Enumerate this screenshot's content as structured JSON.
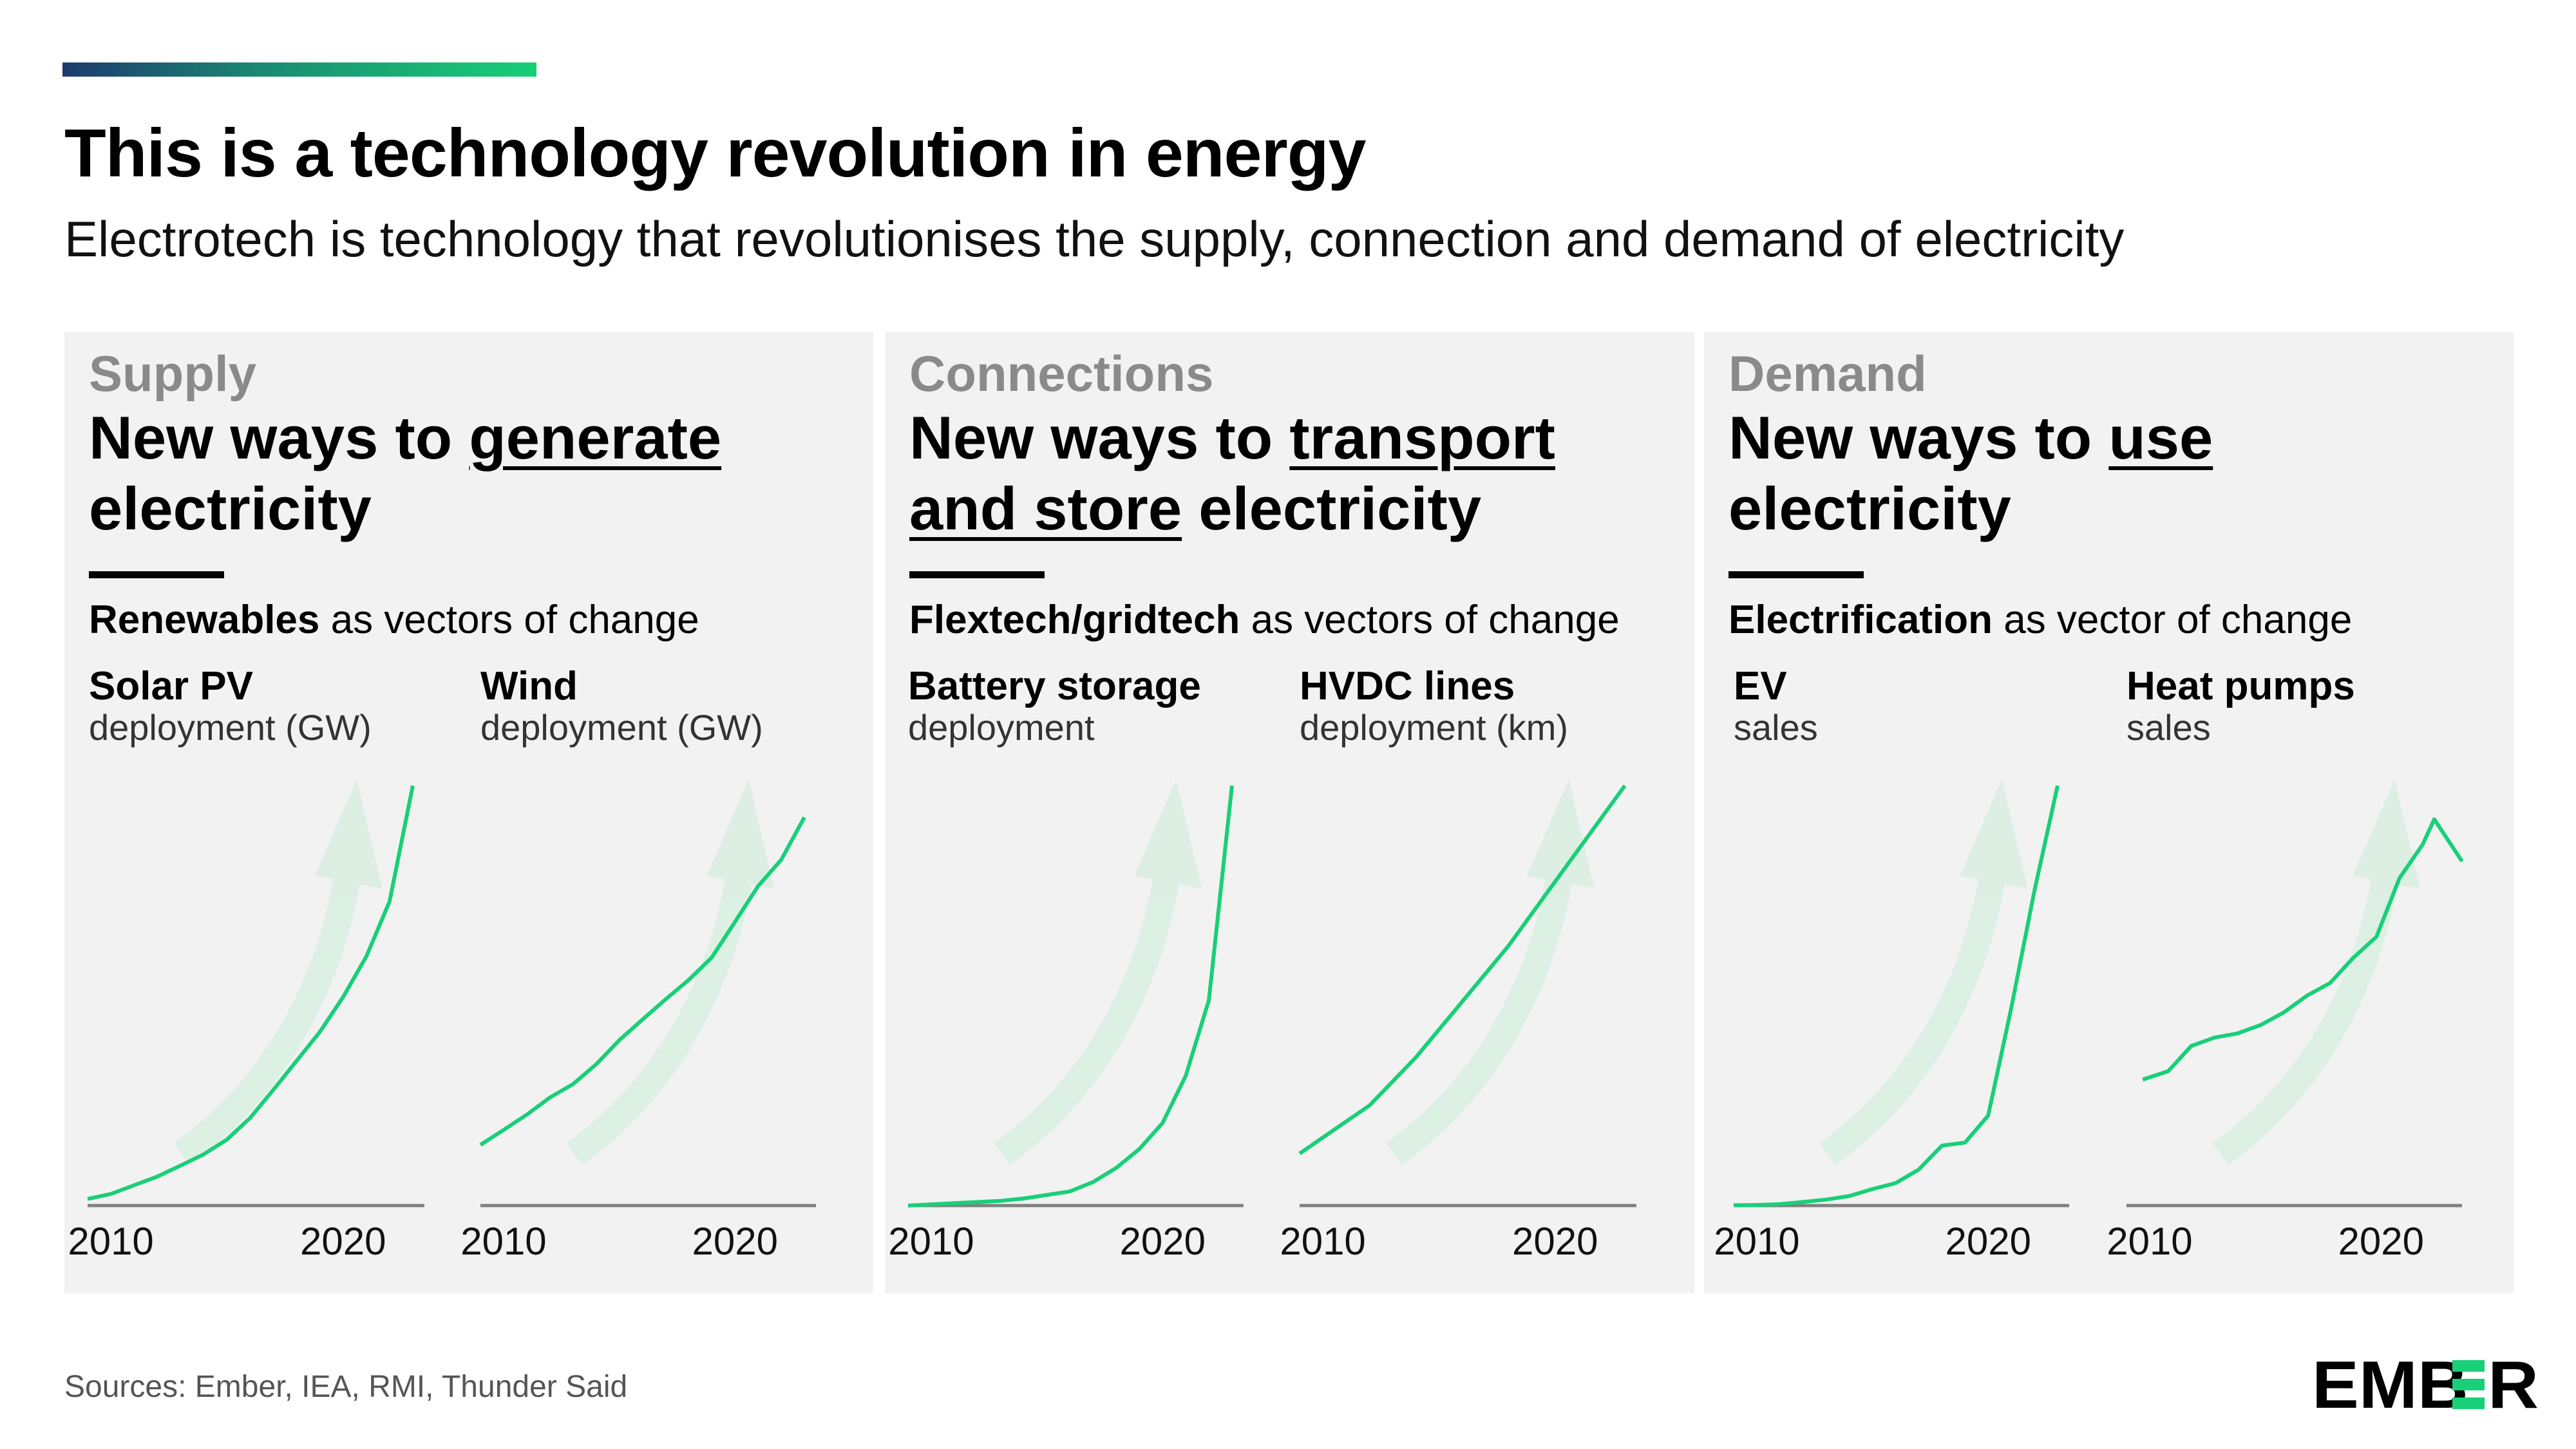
{
  "header": {
    "title": "This is a technology revolution in energy",
    "subtitle": "Electrotech is technology that revolutionises the supply, connection and demand of electricity"
  },
  "panels": [
    {
      "category": "Supply",
      "head_pre": "New ways to ",
      "head_underlined": "generate",
      "head_line2_underlined": "",
      "head_post": "electricity",
      "vector_bold": "Renewables",
      "vector_rest": " as vectors of change"
    },
    {
      "category": "Connections",
      "head_pre": "New ways to ",
      "head_underlined": "transport",
      "head_line2_underlined": "and store",
      "head_post": " electricity",
      "vector_bold": "Flextech/gridtech",
      "vector_rest": " as vectors of change"
    },
    {
      "category": "Demand",
      "head_pre": "New ways to ",
      "head_underlined": "use",
      "head_line2_underlined": "",
      "head_post": "electricity",
      "vector_bold": "Electrification",
      "vector_rest": " as vector of change"
    }
  ],
  "footer": {
    "sources": "Sources: Ember, IEA, RMI, Thunder Said",
    "logo_text": "EMBER"
  },
  "colors": {
    "line": "#19cf78",
    "arrow": "#d6efdf",
    "axis": "#808080",
    "panel": "#f2f2f2"
  },
  "chart_data": [
    {
      "type": "line",
      "title": "Solar PV",
      "subtitle": "deployment (GW)",
      "x": [
        2009,
        2010,
        2011,
        2012,
        2013,
        2014,
        2015,
        2016,
        2017,
        2018,
        2019,
        2020,
        2021,
        2022,
        2023
      ],
      "values": [
        23,
        40,
        70,
        100,
        138,
        177,
        228,
        303,
        400,
        500,
        600,
        720,
        860,
        1050,
        1450
      ],
      "ylim": [
        0,
        1450
      ],
      "xlim": [
        2009,
        2023.5
      ],
      "xticks": [
        "2010",
        "2020"
      ]
    },
    {
      "type": "line",
      "title": "Wind",
      "subtitle": "deployment (GW)",
      "x": [
        2009,
        2010,
        2011,
        2012,
        2013,
        2014,
        2015,
        2016,
        2017,
        2018,
        2019,
        2020,
        2021,
        2022,
        2023
      ],
      "values": [
        159,
        198,
        238,
        283,
        318,
        370,
        433,
        487,
        540,
        591,
        650,
        743,
        837,
        906,
        1017
      ],
      "ylim": [
        0,
        1100
      ],
      "xlim": [
        2009,
        2023.5
      ],
      "xticks": [
        "2010",
        "2020"
      ]
    },
    {
      "type": "line",
      "title": "Battery storage",
      "subtitle": "deployment",
      "x": [
        2009,
        2010,
        2011,
        2012,
        2013,
        2014,
        2015,
        2016,
        2017,
        2018,
        2019,
        2020,
        2021,
        2022,
        2023
      ],
      "values": [
        0,
        0.5,
        1,
        1.5,
        2,
        3,
        4.5,
        6,
        10,
        16,
        24,
        35,
        55,
        87,
        178
      ],
      "ylim": [
        0,
        178
      ],
      "xlim": [
        2009,
        2023.5
      ],
      "xticks": [
        "2010",
        "2020"
      ]
    },
    {
      "type": "line",
      "title": "HVDC lines",
      "subtitle": "deployment (km)",
      "x": [
        2009,
        2010,
        2011,
        2012,
        2013,
        2014,
        2015,
        2016,
        2017,
        2018,
        2019,
        2020,
        2021,
        2022,
        2023
      ],
      "values": [
        13,
        17,
        21,
        25,
        31,
        37,
        44,
        51,
        58,
        65,
        73,
        81,
        89,
        97,
        105
      ],
      "ylim": [
        0,
        105
      ],
      "xlim": [
        2009,
        2023.5
      ],
      "xticks": [
        "2010",
        "2020"
      ]
    },
    {
      "type": "line",
      "title": "EV",
      "subtitle": "sales",
      "x": [
        2009,
        2010,
        2011,
        2012,
        2013,
        2014,
        2015,
        2016,
        2017,
        2018,
        2019,
        2020,
        2021,
        2022,
        2023
      ],
      "values": [
        0.01,
        0.02,
        0.05,
        0.12,
        0.2,
        0.32,
        0.55,
        0.75,
        1.2,
        2.0,
        2.1,
        3.0,
        6.6,
        10.5,
        14
      ],
      "ylim": [
        0,
        14
      ],
      "xlim": [
        2009,
        2023.5
      ],
      "xticks": [
        "2010",
        "2020"
      ]
    },
    {
      "type": "line",
      "title": "Heat pumps",
      "subtitle": "sales",
      "x": [
        2009.7,
        2010.8,
        2011.8,
        2012.8,
        2013.8,
        2014.8,
        2015.8,
        2016.8,
        2017.8,
        2018.8,
        2019.8,
        2020.8,
        2021.8,
        2022.3,
        2023.5
      ],
      "values": [
        30,
        32,
        38,
        40,
        41,
        43,
        46,
        50,
        53,
        59,
        64,
        78,
        86,
        92,
        82
      ],
      "ylim": [
        0,
        100
      ],
      "xlim": [
        2009,
        2023.5
      ],
      "xticks": [
        "2010",
        "2020"
      ]
    }
  ]
}
